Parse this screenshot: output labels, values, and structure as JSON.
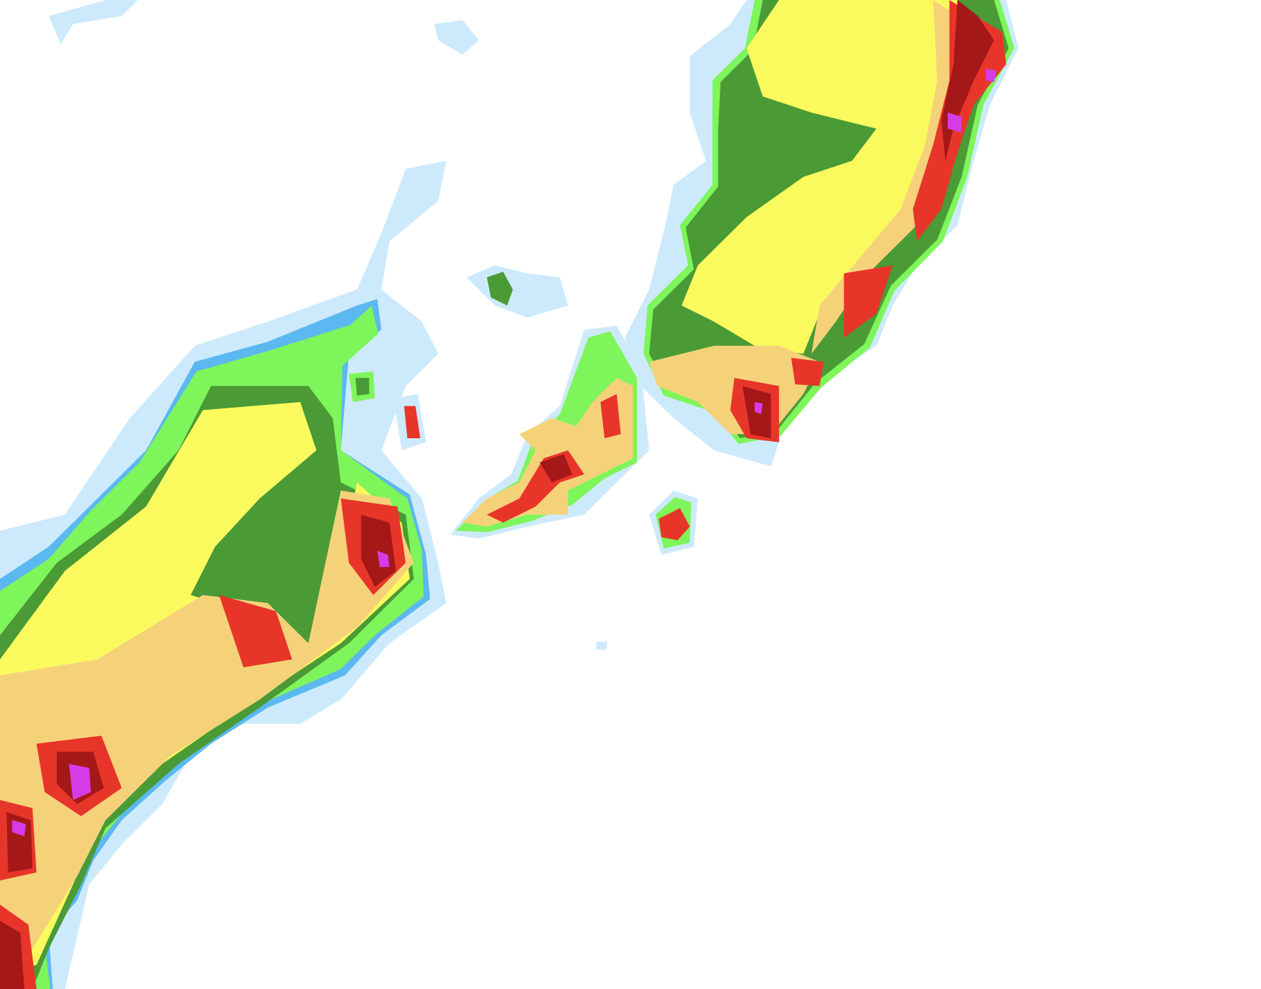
{
  "map": {
    "type": "precipitation radar reflectivity",
    "colors": {
      "background": "#ffffff",
      "very_light": "#cdeafc",
      "light_blue": "#5bb8f0",
      "light_green": "#7ef55a",
      "green": "#4a9a35",
      "yellow": "#fafa5e",
      "tan": "#f5d27a",
      "orange": "#f0a040",
      "red": "#e8352a",
      "dark_red": "#a51818",
      "magenta": "#d63ce6"
    }
  }
}
